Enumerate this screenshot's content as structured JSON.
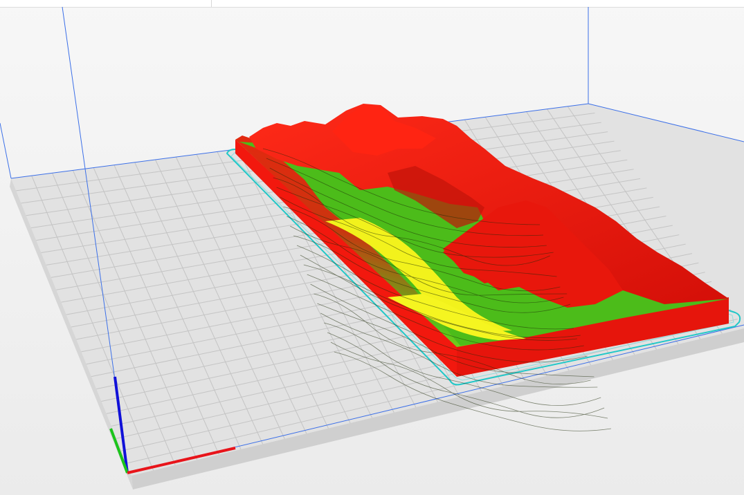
{
  "scene": {
    "view": "3d-print-preview",
    "model": "terrain-relief",
    "colors": {
      "background": "#efefef",
      "plate": "#e3e3e3",
      "plate_edge": "#cfcfcf",
      "grid_line": "#c8c8c8",
      "volume_edge": "#3b6fe8",
      "skirt": "#21c8c8",
      "model_high": "#ff1a12",
      "model_mid": "#3fc218",
      "model_low": "#ffff22",
      "model_wall": "#ff1a12",
      "axis_x": "#e8141a",
      "axis_y": "#1bc41b",
      "axis_z": "#1010d8"
    },
    "icons": {
      "axis_gizmo": "xyz-axes-icon"
    }
  }
}
